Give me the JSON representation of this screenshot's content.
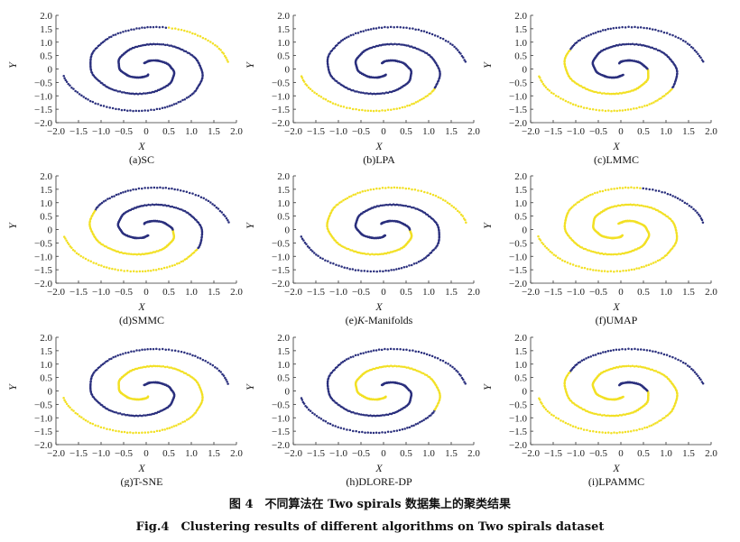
{
  "colors": {
    "cluster_a": "#2a2f7d",
    "cluster_b": "#f2e024",
    "axis": "#333333"
  },
  "chart_data": [
    {
      "type": "scatter",
      "label": "(a)SC",
      "xlabel": "X",
      "ylabel": "Y",
      "xlim": [
        -2.0,
        2.0
      ],
      "ylim": [
        -2.0,
        2.0
      ],
      "xticks": [
        "−2.0",
        "−1.5",
        "−1.0",
        "−0.5",
        "0",
        "0.5",
        "1.0",
        "1.5",
        "2.0"
      ],
      "yticks": [
        "2.0",
        "1.5",
        "1.0",
        "0.5",
        "0",
        "−0.5",
        "−1.0",
        "−1.5",
        "−2.0"
      ],
      "clusters": {
        "A1": "a",
        "A2": "a",
        "B1": "b",
        "B2": "a",
        "B3": "a",
        "B4": "a"
      }
    },
    {
      "type": "scatter",
      "label": "(b)LPA",
      "xlabel": "X",
      "ylabel": "Y",
      "xlim": [
        -2.0,
        2.0
      ],
      "ylim": [
        -2.0,
        2.0
      ],
      "xticks": [
        "−2.0",
        "−1.5",
        "−1.0",
        "−0.5",
        "0",
        "0.5",
        "1.0",
        "1.5",
        "2.0"
      ],
      "yticks": [
        "2.0",
        "1.5",
        "1.0",
        "0.5",
        "0",
        "−0.5",
        "−1.0",
        "−1.5",
        "−2.0"
      ],
      "clusters": {
        "A1": "b",
        "A2": "a",
        "B1": "a",
        "B2": "a",
        "B3": "a",
        "B4": "a"
      }
    },
    {
      "type": "scatter",
      "label": "(c)LMMC",
      "xlabel": "X",
      "ylabel": "Y",
      "xlim": [
        -2.0,
        2.0
      ],
      "ylim": [
        -2.0,
        2.0
      ],
      "xticks": [
        "−2.0",
        "−1.5",
        "−1.0",
        "−0.5",
        "0",
        "0.5",
        "1.0",
        "1.5",
        "2.0"
      ],
      "yticks": [
        "2.0",
        "1.5",
        "1.0",
        "0.5",
        "0",
        "−0.5",
        "−1.0",
        "−1.5",
        "−2.0"
      ],
      "clusters": {
        "A1": "b",
        "A2": "a",
        "B1": "a",
        "B2": "a",
        "B3": "b",
        "B4": "a"
      }
    },
    {
      "type": "scatter",
      "label": "(d)SMMC",
      "xlabel": "X",
      "ylabel": "Y",
      "xlim": [
        -2.0,
        2.0
      ],
      "ylim": [
        -2.0,
        2.0
      ],
      "xticks": [
        "−2.0",
        "−1.5",
        "−1.0",
        "−0.5",
        "0",
        "0.5",
        "1.0",
        "1.5",
        "2.0"
      ],
      "yticks": [
        "2.0",
        "1.5",
        "1.0",
        "0.5",
        "0",
        "−0.5",
        "−1.0",
        "−1.5",
        "−2.0"
      ],
      "clusters": {
        "A1": "b",
        "A2": "a",
        "B1": "a",
        "B2": "a",
        "B3": "b",
        "B4": "a"
      }
    },
    {
      "type": "scatter",
      "label": "(e)K-Manifolds",
      "label_italic": "K",
      "label_prefix": "(e)",
      "label_suffix": "-Manifolds",
      "xlabel": "X",
      "ylabel": "Y",
      "xlim": [
        -2.0,
        2.0
      ],
      "ylim": [
        -2.0,
        2.0
      ],
      "xticks": [
        "−2.0",
        "−1.5",
        "−1.0",
        "−0.5",
        "0",
        "0.5",
        "1.0",
        "1.5",
        "2.0"
      ],
      "yticks": [
        "2.0",
        "1.5",
        "1.0",
        "0.5",
        "0",
        "−0.5",
        "−1.0",
        "−1.5",
        "−2.0"
      ],
      "clusters": {
        "A1": "a",
        "A2": "a",
        "B1": "b",
        "B2": "b",
        "B3": "b",
        "B4": "a"
      }
    },
    {
      "type": "scatter",
      "label": "(f)UMAP",
      "xlabel": "X",
      "ylabel": "Y",
      "xlim": [
        -2.0,
        2.0
      ],
      "ylim": [
        -2.0,
        2.0
      ],
      "xticks": [
        "−2.0",
        "−1.5",
        "−1.0",
        "−0.5",
        "0",
        "0.5",
        "1.0",
        "1.5",
        "2.0"
      ],
      "yticks": [
        "2.0",
        "1.5",
        "1.0",
        "0.5",
        "0",
        "−0.5",
        "−1.0",
        "−1.5",
        "−2.0"
      ],
      "clusters": {
        "A1": "b",
        "A2": "b",
        "B1": "a",
        "B2": "b",
        "B3": "b",
        "B4": "b"
      }
    },
    {
      "type": "scatter",
      "label": "(g)T-SNE",
      "xlabel": "X",
      "ylabel": "Y",
      "xlim": [
        -2.0,
        2.0
      ],
      "ylim": [
        -2.0,
        2.0
      ],
      "xticks": [
        "−2.0",
        "−1.5",
        "−1.0",
        "−0.5",
        "0",
        "0.5",
        "1.0",
        "1.5",
        "2.0"
      ],
      "yticks": [
        "2.0",
        "1.5",
        "1.0",
        "0.5",
        "0",
        "−0.5",
        "−1.0",
        "−1.5",
        "−2.0"
      ],
      "clusters": {
        "A1": "b",
        "A2": "b",
        "B1": "a",
        "B2": "a",
        "B3": "a",
        "B4": "a"
      }
    },
    {
      "type": "scatter",
      "label": "(h)DLORE-DP",
      "xlabel": "X",
      "ylabel": "Y",
      "xlim": [
        -2.0,
        2.0
      ],
      "ylim": [
        -2.0,
        2.0
      ],
      "xticks": [
        "−2.0",
        "−1.5",
        "−1.0",
        "−0.5",
        "0",
        "0.5",
        "1.0",
        "1.5",
        "2.0"
      ],
      "yticks": [
        "2.0",
        "1.5",
        "1.0",
        "0.5",
        "0",
        "−0.5",
        "−1.0",
        "−1.5",
        "−2.0"
      ],
      "clusters": {
        "A1": "a",
        "A2": "b",
        "B1": "a",
        "B2": "a",
        "B3": "a",
        "B4": "a"
      }
    },
    {
      "type": "scatter",
      "label": "(i)LPAMMC",
      "xlabel": "X",
      "ylabel": "Y",
      "xlim": [
        -2.0,
        2.0
      ],
      "ylim": [
        -2.0,
        2.0
      ],
      "xticks": [
        "−2.0",
        "−1.5",
        "−1.0",
        "−0.5",
        "0",
        "0.5",
        "1.0",
        "1.5",
        "2.0"
      ],
      "yticks": [
        "2.0",
        "1.5",
        "1.0",
        "0.5",
        "0",
        "−0.5",
        "−1.0",
        "−1.5",
        "−2.0"
      ],
      "clusters": {
        "A1": "b",
        "A2": "b",
        "B1": "a",
        "B2": "a",
        "B3": "b",
        "B4": "a"
      }
    }
  ],
  "caption_cn": "图 4　不同算法在 Two spirals 数据集上的聚类结果",
  "caption_en": "Fig.4　Clustering results of different algorithms on Two spirals dataset"
}
